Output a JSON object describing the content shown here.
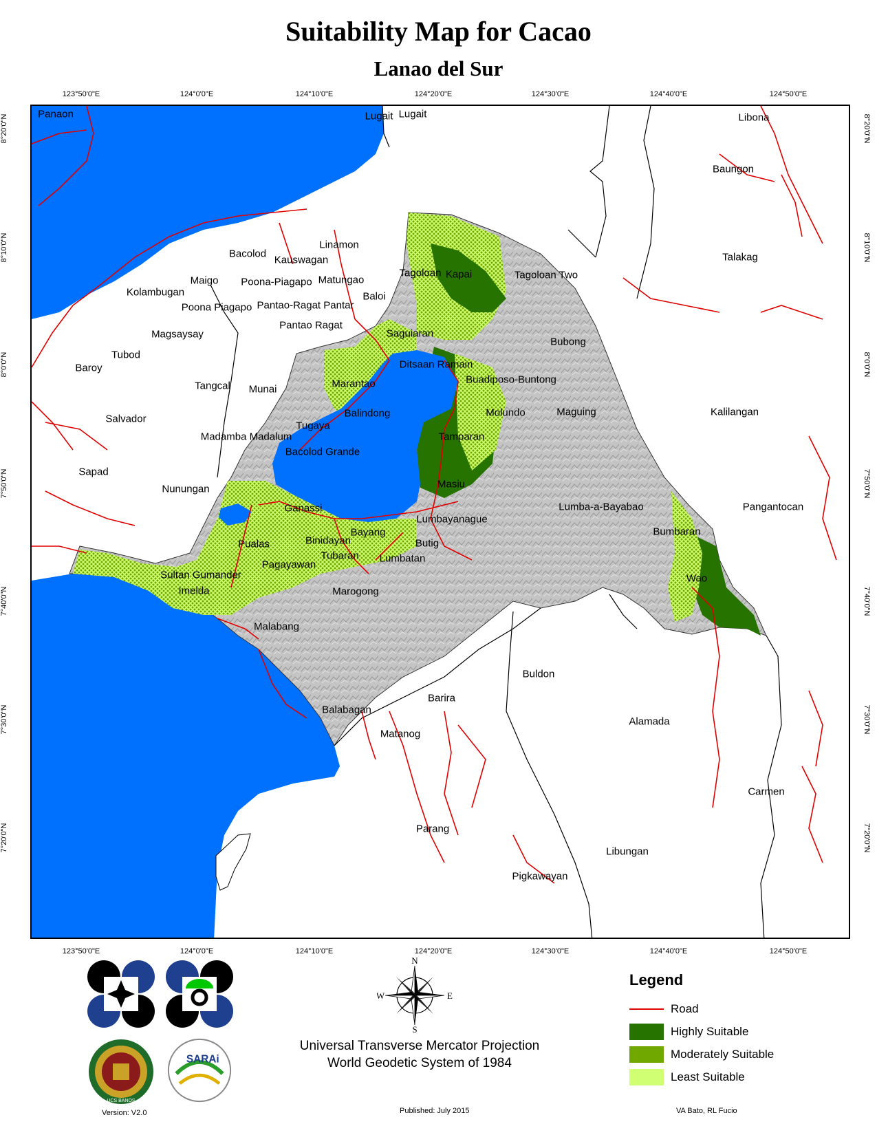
{
  "title": "Suitability Map for Cacao",
  "subtitle": "Lanao del Sur",
  "graticule": {
    "longitudes": [
      "123°50'0\"E",
      "124°0'0\"E",
      "124°10'0\"E",
      "124°20'0\"E",
      "124°30'0\"E",
      "124°40'0\"E",
      "124°50'0\"E"
    ],
    "latitudes": [
      "8°20'0\"N",
      "8°10'0\"N",
      "8°0'0\"N",
      "7°50'0\"N",
      "7°40'0\"N",
      "7°30'0\"N",
      "7°20'0\"N"
    ]
  },
  "places": {
    "panaon": "Panaon",
    "lugait1": "Lugait",
    "lugait2": "Lugait",
    "libona": "Libona",
    "baungon": "Baungon",
    "talakag": "Talakag",
    "linamon": "Linamon",
    "bacolod": "Bacolod",
    "kauswagan": "Kauswagan",
    "maigo": "Maigo",
    "poona_piagapo_1": "Poona-Piagapo",
    "matungao": "Matungao",
    "kolambugan": "Kolambugan",
    "poona_piagapo_2": "Poona Piagapo",
    "pantao_ragat_pantar": "Pantao-Ragat Pantar",
    "baloi": "Baloi",
    "pantao_ragat": "Pantao Ragat",
    "magsaysay": "Magsaysay",
    "tubod": "Tubod",
    "baroy": "Baroy",
    "tangcal": "Tangcal",
    "munai": "Munai",
    "salvador": "Salvador",
    "madamba_madalum": "Madamba Madalum",
    "sapad": "Sapad",
    "nunungan": "Nunungan",
    "tagoloan": "Tagoloan",
    "kapai": "Kapai",
    "tagoloan_two": "Tagoloan Two",
    "saguiaran": "Saguiaran",
    "bubong": "Bubong",
    "ditsaan_ramain": "Ditsaan Ramain",
    "buadiposo": "Buadiposo-Buntong",
    "marantao": "Marantao",
    "balindong": "Balindong",
    "molundo": "Molundo",
    "maguing": "Maguing",
    "kalilangan": "Kalilangan",
    "tugaya": "Tugaya",
    "tamparan": "Tamparan",
    "bacolod_grande": "Bacolod Grande",
    "masiu": "Masiu",
    "ganassi": "Ganassi",
    "lumbayanague": "Lumbayanague",
    "lumba_a_bayabao": "Lumba-a-Bayabao",
    "pangantocan": "Pangantocan",
    "bayang": "Bayang",
    "bumbaran": "Bumbaran",
    "pualas": "Pualas",
    "binidayan": "Binidayan",
    "butig": "Butig",
    "tubaran": "Tubaran",
    "lumbatan": "Lumbatan",
    "sultan_gumander": "Sultan Gumander",
    "pagayawan": "Pagayawan",
    "wao": "Wao",
    "imelda": "Imelda",
    "marogong": "Marogong",
    "malabang": "Malabang",
    "buldon": "Buldon",
    "barira": "Barira",
    "alamada": "Alamada",
    "balabagan": "Balabagan",
    "matanog": "Matanog",
    "carmen": "Carmen",
    "parang": "Parang",
    "libungan": "Libungan",
    "pigkawayan": "Pigkawayan"
  },
  "compass": {
    "n": "N",
    "s": "S",
    "e": "E",
    "w": "W"
  },
  "legend": {
    "title": "Legend",
    "items": [
      {
        "label": "Road",
        "color": "#e00000",
        "kind": "line"
      },
      {
        "label": "Highly Suitable",
        "color": "#267300",
        "kind": "fill"
      },
      {
        "label": "Moderately Suitable",
        "color": "#70a800",
        "kind": "fill"
      },
      {
        "label": "Least Suitable",
        "color": "#d1ff73",
        "kind": "fill"
      }
    ]
  },
  "projection": {
    "line1": "Universal Transverse Mercator Projection",
    "line2": "World Geodetic System of 1984"
  },
  "footer": {
    "version": "Version: V2.0",
    "published": "Published: July 2015",
    "authors": "VA Bato, RL Fucio"
  },
  "logos": {
    "sarai": "SARAi",
    "uplb_text": "UCS BANOS"
  },
  "colors": {
    "water": "#0070ff",
    "province": "#c8c8c8",
    "road": "#e00000"
  }
}
